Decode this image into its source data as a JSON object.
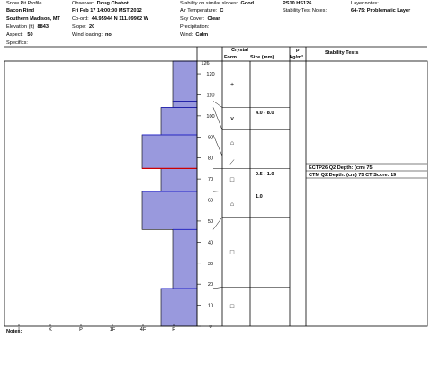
{
  "header": {
    "col1": {
      "title": "Snow Pit Profile",
      "location": "Bacon Rind",
      "region": "Southern Madison, MT",
      "elevation_label": "Elevation (ft)",
      "elevation_value": "8843",
      "aspect_label": "Aspect:",
      "aspect_value": "50",
      "specifics_label": "Specifics:"
    },
    "col2": {
      "observer_label": "Observer:",
      "observer_value": "Doug Chabot",
      "date_value": "Fri Feb 17 14:00:00 MST 2012",
      "coord_label": "Co-ord:",
      "coord_value": "44.95944 N 111.09962 W",
      "slope_label": "Slope:",
      "slope_value": "20",
      "wind_label": "Wind loading:",
      "wind_value": "no"
    },
    "col3": {
      "stability_label": "Stability on similar slopes:",
      "stability_value": "Good",
      "airtemp_label": "Air Temperature:",
      "airtemp_value": "C",
      "sky_label": "Sky Cover:",
      "sky_value": "Clear",
      "precip_label": "Precipitation:",
      "wind_label": "Wind:",
      "wind_value": "Calm"
    },
    "col4": {
      "pit_id": "PS10 HS126",
      "stability_notes_label": "Stability Test Notes:",
      "stability_notes_value": "",
      "layer_notes_label": "Layer notes:",
      "layer_notes_value": "64-75: Problematic Layer"
    }
  },
  "table_headers": {
    "crystal": "Crystal",
    "form": "Form",
    "size": "Size (mm)",
    "rho": "ρ",
    "density_unit": "kg/m³",
    "stability_tests": "Stability Tests"
  },
  "hardness_axis": [
    "I",
    "K",
    "P",
    "1F",
    "4F",
    "F"
  ],
  "depth_axis": [
    "120",
    "110",
    "100",
    "90",
    "80",
    "70",
    "60",
    "50",
    "40",
    "30",
    "20",
    "10",
    "0"
  ],
  "depth_top": "126",
  "chart_data": {
    "type": "bar",
    "orientation": "horizontal",
    "xlabel": "",
    "ylabel": "",
    "x_categories": [
      "I",
      "K",
      "P",
      "1F",
      "4F",
      "F"
    ],
    "ylim": [
      0,
      126
    ],
    "layers": [
      {
        "from": 107,
        "to": 126,
        "hardness": "F"
      },
      {
        "from": 104,
        "to": 107,
        "hardness": "F"
      },
      {
        "from": 91,
        "to": 104,
        "hardness": "4F-F"
      },
      {
        "from": 75,
        "to": 91,
        "hardness": "4F"
      },
      {
        "from": 64,
        "to": 75,
        "hardness": "4F-F"
      },
      {
        "from": 46,
        "to": 64,
        "hardness": "4F"
      },
      {
        "from": 18,
        "to": 46,
        "hardness": "F"
      },
      {
        "from": 0,
        "to": 18,
        "hardness": "4F-F"
      }
    ],
    "problematic_layer_depth": 75
  },
  "crystal_rows": [
    {
      "size": "",
      "symbol": "+"
    },
    {
      "size": "4.0 - 8.0",
      "symbol": "∨"
    },
    {
      "size": "",
      "symbol": "⌂"
    },
    {
      "size": "",
      "symbol": "⟋"
    },
    {
      "size": "0.5 - 1.0",
      "symbol": "□"
    },
    {
      "size": "1.0",
      "symbol": "⌂"
    },
    {
      "size": "",
      "symbol": "□"
    },
    {
      "size": "",
      "symbol": "□"
    }
  ],
  "stability_tests": [
    "ECTP26 Q2 Depth: (cm) 75",
    "CTM Q2 Depth: (cm) 75 CT Score: 19"
  ],
  "notes_label": "Notes:",
  "colors": {
    "fill": "#9999dd",
    "stroke": "#2222cc",
    "problem": "#cc0000"
  }
}
